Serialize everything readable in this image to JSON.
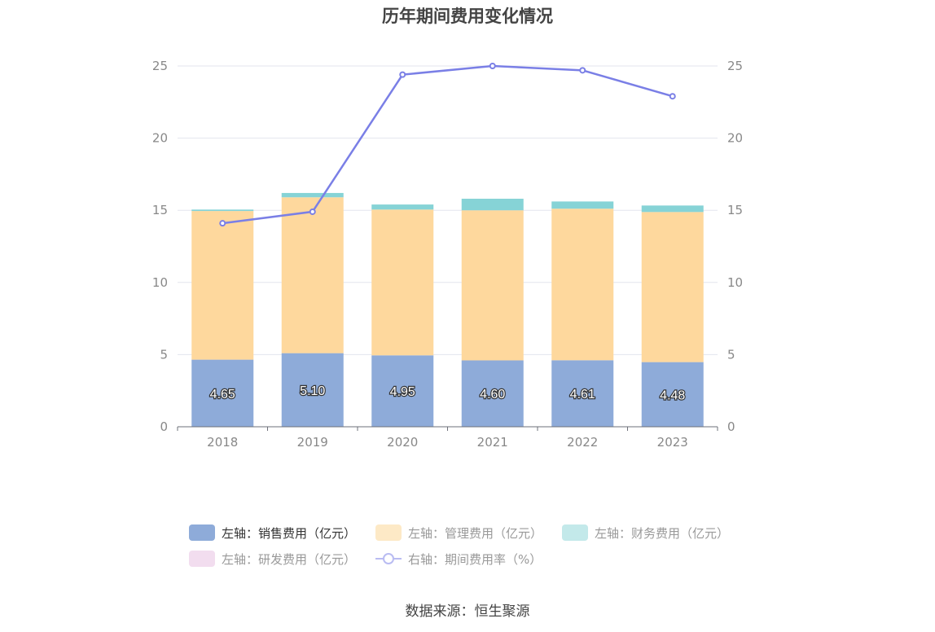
{
  "title": "历年期间费用变化情况",
  "source": "数据来源：恒生聚源",
  "colors": {
    "sales": "#8eabd9",
    "admin": "#fed89d",
    "finance": "#86d3d6",
    "rnd": "#f2d8ec",
    "rate": "#7a7fe6",
    "grid": "#e3e6ee",
    "axis": "#6e7079"
  },
  "legend": [
    {
      "label": "左轴：销售费用（亿元）",
      "color": "#8eabd9",
      "type": "bar",
      "active": true
    },
    {
      "label": "左轴：管理费用（亿元）",
      "color": "#fde9c6",
      "type": "bar",
      "active": false
    },
    {
      "label": "左轴：财务费用（亿元）",
      "color": "#c3e9ea",
      "type": "bar",
      "active": false
    },
    {
      "label": "左轴：研发费用（亿元）",
      "color": "#f2ddef",
      "type": "bar",
      "active": false
    },
    {
      "label": "右轴：期间费用率（%）",
      "color": "#b9bcf2",
      "type": "line",
      "active": false
    }
  ],
  "chart_data": {
    "type": "bar",
    "categories": [
      "2018",
      "2019",
      "2020",
      "2021",
      "2022",
      "2023"
    ],
    "stacked": true,
    "series": [
      {
        "name": "左轴：销售费用（亿元）",
        "axis": "left",
        "values": [
          4.65,
          5.1,
          4.95,
          4.6,
          4.61,
          4.48
        ],
        "labels": [
          "4.65",
          "5.10",
          "4.95",
          "4.60",
          "4.61",
          "4.48"
        ]
      },
      {
        "name": "左轴：管理费用（亿元）",
        "axis": "left",
        "values": [
          10.3,
          10.8,
          10.1,
          10.4,
          10.5,
          10.4
        ]
      },
      {
        "name": "左轴：财务费用（亿元）",
        "axis": "left",
        "values": [
          0.1,
          0.3,
          0.35,
          0.8,
          0.5,
          0.45
        ]
      },
      {
        "name": "左轴：研发费用（亿元）",
        "axis": "left",
        "values": [
          0,
          0,
          0,
          0,
          0,
          0
        ]
      },
      {
        "name": "右轴：期间费用率（%）",
        "axis": "right",
        "type": "line",
        "values": [
          14.1,
          14.9,
          24.4,
          25.0,
          24.7,
          22.9
        ]
      }
    ],
    "y_left": {
      "min": 0,
      "max": 25,
      "ticks": [
        "0",
        "5",
        "10",
        "15",
        "20",
        "25"
      ]
    },
    "y_right": {
      "min": 0,
      "max": 25,
      "ticks": [
        "0",
        "5",
        "10",
        "15",
        "20",
        "25"
      ]
    },
    "grid": true,
    "legend_position": "bottom"
  }
}
